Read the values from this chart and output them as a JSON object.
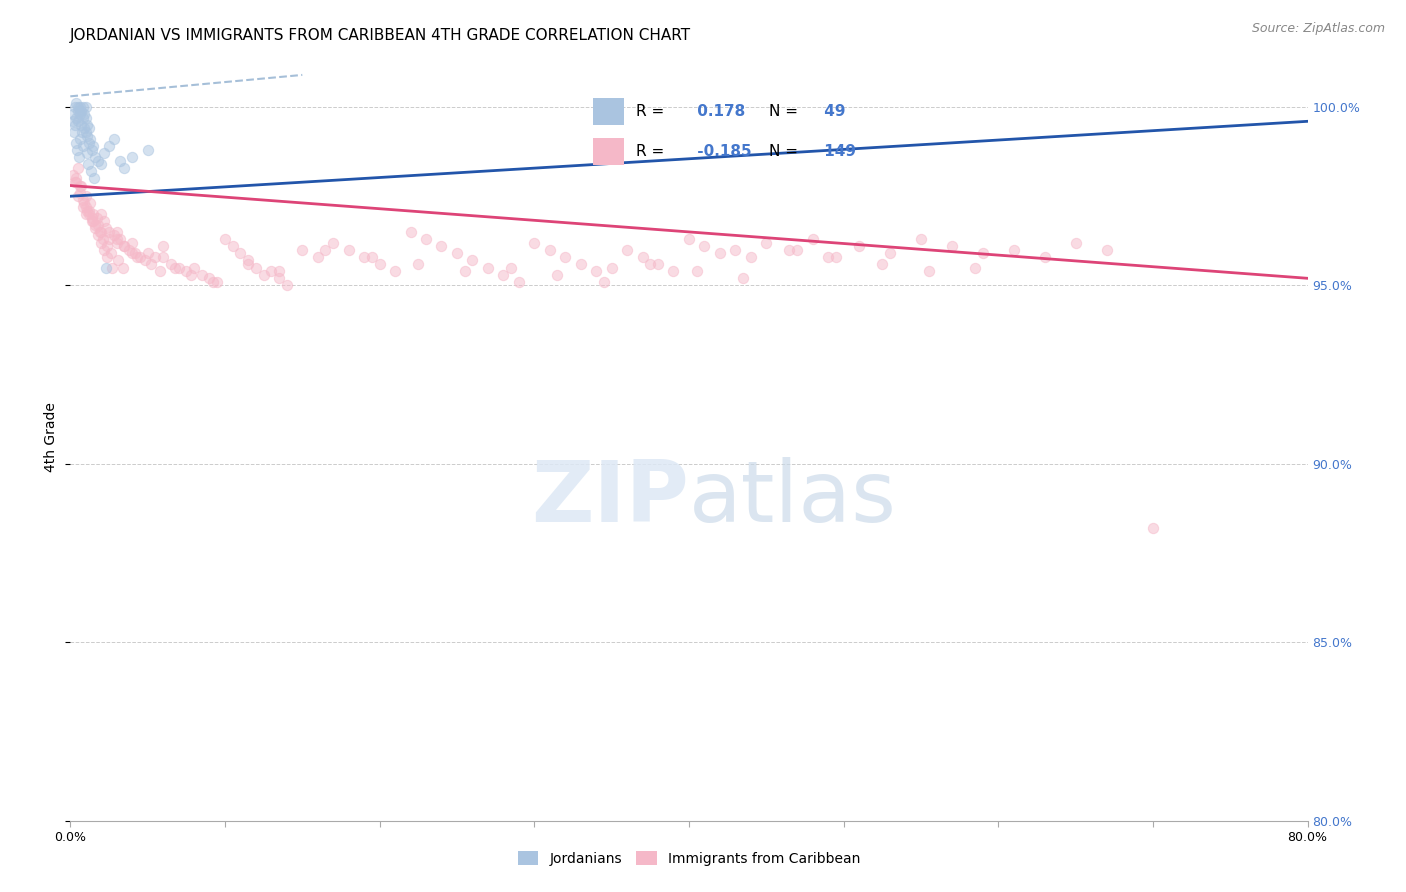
{
  "title": "JORDANIAN VS IMMIGRANTS FROM CARIBBEAN 4TH GRADE CORRELATION CHART",
  "source_text": "Source: ZipAtlas.com",
  "ylabel": "4th Grade",
  "xlim": [
    0.0,
    80.0
  ],
  "ylim": [
    80.0,
    101.5
  ],
  "x_ticks": [
    0.0,
    10.0,
    20.0,
    30.0,
    40.0,
    50.0,
    60.0,
    70.0,
    80.0
  ],
  "y_ticks": [
    80.0,
    85.0,
    90.0,
    95.0,
    100.0
  ],
  "jordanian_color": "#aac4e0",
  "caribbean_color": "#f5b8c8",
  "blue_line_color": "#2255aa",
  "pink_line_color": "#dd4477",
  "blue_dashed_color": "#88aacc",
  "background_color": "#ffffff",
  "grid_color": "#cccccc",
  "right_tick_color": "#4477cc",
  "title_fontsize": 11,
  "tick_label_fontsize": 9,
  "source_fontsize": 9,
  "marker_size": 55,
  "marker_alpha": 0.5,
  "R_blue": "0.178",
  "N_blue": "49",
  "R_pink": "-0.185",
  "N_pink": "149",
  "blue_line": [
    0.0,
    80.0,
    97.5,
    99.6
  ],
  "pink_line": [
    0.0,
    80.0,
    97.8,
    95.2
  ],
  "blue_dashed": [
    0.0,
    15.0,
    100.3,
    100.9
  ],
  "jordanian_x": [
    0.2,
    0.3,
    0.3,
    0.4,
    0.4,
    0.5,
    0.5,
    0.5,
    0.6,
    0.6,
    0.7,
    0.7,
    0.8,
    0.8,
    0.9,
    0.9,
    1.0,
    1.0,
    1.0,
    1.1,
    1.1,
    1.2,
    1.2,
    1.3,
    1.4,
    1.5,
    1.6,
    1.8,
    2.0,
    2.2,
    2.5,
    2.8,
    3.2,
    3.5,
    4.0,
    5.0,
    0.15,
    0.25,
    0.35,
    0.45,
    0.55,
    0.65,
    0.75,
    0.85,
    1.05,
    1.15,
    1.35,
    1.55,
    2.3
  ],
  "jordanian_y": [
    99.8,
    100.0,
    99.5,
    100.1,
    99.7,
    100.0,
    99.9,
    99.6,
    100.0,
    99.8,
    99.9,
    99.5,
    100.0,
    99.7,
    99.8,
    99.4,
    99.7,
    99.3,
    100.0,
    99.5,
    99.2,
    99.4,
    99.0,
    99.1,
    98.8,
    98.9,
    98.6,
    98.5,
    98.4,
    98.7,
    98.9,
    99.1,
    98.5,
    98.3,
    98.6,
    98.8,
    99.6,
    99.3,
    99.0,
    98.8,
    98.6,
    99.1,
    99.3,
    98.9,
    98.7,
    98.4,
    98.2,
    98.0,
    95.5
  ],
  "caribbean_x": [
    0.3,
    0.5,
    0.5,
    0.7,
    0.8,
    1.0,
    1.0,
    1.2,
    1.3,
    1.5,
    1.5,
    1.7,
    1.8,
    2.0,
    2.0,
    2.2,
    2.3,
    2.5,
    2.5,
    2.8,
    3.0,
    3.0,
    3.2,
    3.5,
    3.8,
    4.0,
    4.2,
    4.5,
    4.8,
    5.0,
    5.5,
    6.0,
    6.0,
    6.5,
    7.0,
    7.5,
    8.0,
    8.5,
    9.0,
    9.5,
    10.0,
    10.5,
    11.0,
    11.5,
    12.0,
    12.5,
    13.0,
    13.5,
    14.0,
    15.0,
    16.0,
    17.0,
    18.0,
    19.0,
    20.0,
    21.0,
    22.0,
    23.0,
    24.0,
    25.0,
    26.0,
    27.0,
    28.0,
    29.0,
    30.0,
    31.0,
    32.0,
    33.0,
    34.0,
    35.0,
    36.0,
    37.0,
    38.0,
    39.0,
    40.0,
    41.0,
    42.0,
    43.0,
    44.0,
    45.0,
    47.0,
    49.0,
    51.0,
    53.0,
    55.0,
    57.0,
    59.0,
    61.0,
    63.0,
    65.0,
    67.0,
    0.4,
    0.6,
    0.9,
    1.1,
    1.4,
    1.6,
    1.9,
    2.1,
    2.4,
    2.6,
    3.1,
    3.4,
    4.3,
    5.2,
    5.8,
    6.8,
    7.8,
    9.2,
    11.5,
    13.5,
    16.5,
    19.5,
    22.5,
    25.5,
    28.5,
    31.5,
    34.5,
    37.5,
    40.5,
    43.5,
    46.5,
    49.5,
    52.5,
    55.5,
    58.5,
    0.2,
    0.4,
    0.6,
    0.8,
    1.0,
    1.2,
    1.4,
    1.6,
    1.8,
    2.0,
    2.2,
    2.4,
    2.7,
    3.0,
    3.5,
    4.0,
    48.0,
    70.0
  ],
  "caribbean_y": [
    97.9,
    98.3,
    97.5,
    97.8,
    97.2,
    97.5,
    97.0,
    97.1,
    97.3,
    97.0,
    96.8,
    96.9,
    96.7,
    97.0,
    96.5,
    96.8,
    96.6,
    96.5,
    96.3,
    96.4,
    96.2,
    96.5,
    96.3,
    96.1,
    96.0,
    96.2,
    95.9,
    95.8,
    95.7,
    95.9,
    95.8,
    96.1,
    95.8,
    95.6,
    95.5,
    95.4,
    95.5,
    95.3,
    95.2,
    95.1,
    96.3,
    96.1,
    95.9,
    95.7,
    95.5,
    95.3,
    95.4,
    95.2,
    95.0,
    96.0,
    95.8,
    96.2,
    96.0,
    95.8,
    95.6,
    95.4,
    96.5,
    96.3,
    96.1,
    95.9,
    95.7,
    95.5,
    95.3,
    95.1,
    96.2,
    96.0,
    95.8,
    95.6,
    95.4,
    95.5,
    96.0,
    95.8,
    95.6,
    95.4,
    96.3,
    96.1,
    95.9,
    96.0,
    95.8,
    96.2,
    96.0,
    95.8,
    96.1,
    95.9,
    96.3,
    96.1,
    95.9,
    96.0,
    95.8,
    96.2,
    96.0,
    98.0,
    97.8,
    97.3,
    97.1,
    96.9,
    96.7,
    96.5,
    96.3,
    96.1,
    95.9,
    95.7,
    95.5,
    95.8,
    95.6,
    95.4,
    95.5,
    95.3,
    95.1,
    95.6,
    95.4,
    96.0,
    95.8,
    95.6,
    95.4,
    95.5,
    95.3,
    95.1,
    95.6,
    95.4,
    95.2,
    96.0,
    95.8,
    95.6,
    95.4,
    95.5,
    98.1,
    97.9,
    97.6,
    97.4,
    97.2,
    97.0,
    96.8,
    96.6,
    96.4,
    96.2,
    96.0,
    95.8,
    95.5,
    96.3,
    96.1,
    95.9,
    96.3,
    88.2
  ]
}
